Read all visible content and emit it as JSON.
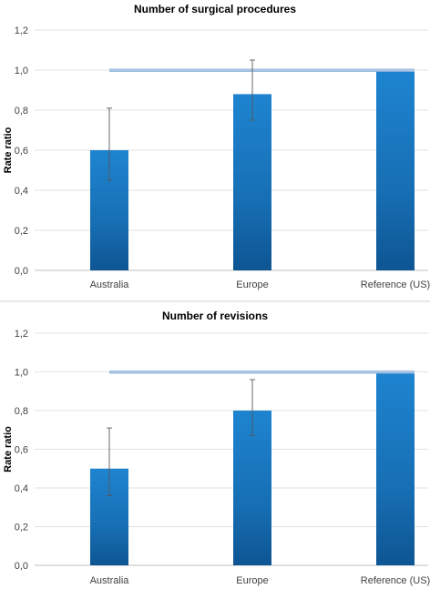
{
  "chart_data": [
    {
      "type": "bar",
      "title": "Number of surgical procedures",
      "ylabel": "Rate ratio",
      "xlabel": "",
      "categories": [
        "Australia",
        "Europe",
        "Reference (US)"
      ],
      "values": [
        0.6,
        0.88,
        1.0
      ],
      "error_low": [
        0.45,
        0.75,
        1.0
      ],
      "error_high": [
        0.81,
        1.05,
        1.0
      ],
      "reference_value": 1.0,
      "ylim": [
        0,
        1.2
      ],
      "yticks": [
        "0,0",
        "0,2",
        "0,4",
        "0,6",
        "0,8",
        "1,0",
        "1,2"
      ],
      "grid": true,
      "legend": "none",
      "bar_color": "#1a7ac4",
      "reference_line_color": "#a9c4e4"
    },
    {
      "type": "bar",
      "title": "Number of revisions",
      "ylabel": "Rate ratio",
      "xlabel": "",
      "categories": [
        "Australia",
        "Europe",
        "Reference (US)"
      ],
      "values": [
        0.5,
        0.8,
        1.0
      ],
      "error_low": [
        0.36,
        0.67,
        1.0
      ],
      "error_high": [
        0.71,
        0.96,
        1.0
      ],
      "reference_value": 1.0,
      "ylim": [
        0,
        1.2
      ],
      "yticks": [
        "0,0",
        "0,2",
        "0,4",
        "0,6",
        "0,8",
        "1,0",
        "1,2"
      ],
      "grid": true,
      "legend": "none",
      "bar_color": "#1a7ac4",
      "reference_line_color": "#a9c4e4"
    }
  ]
}
